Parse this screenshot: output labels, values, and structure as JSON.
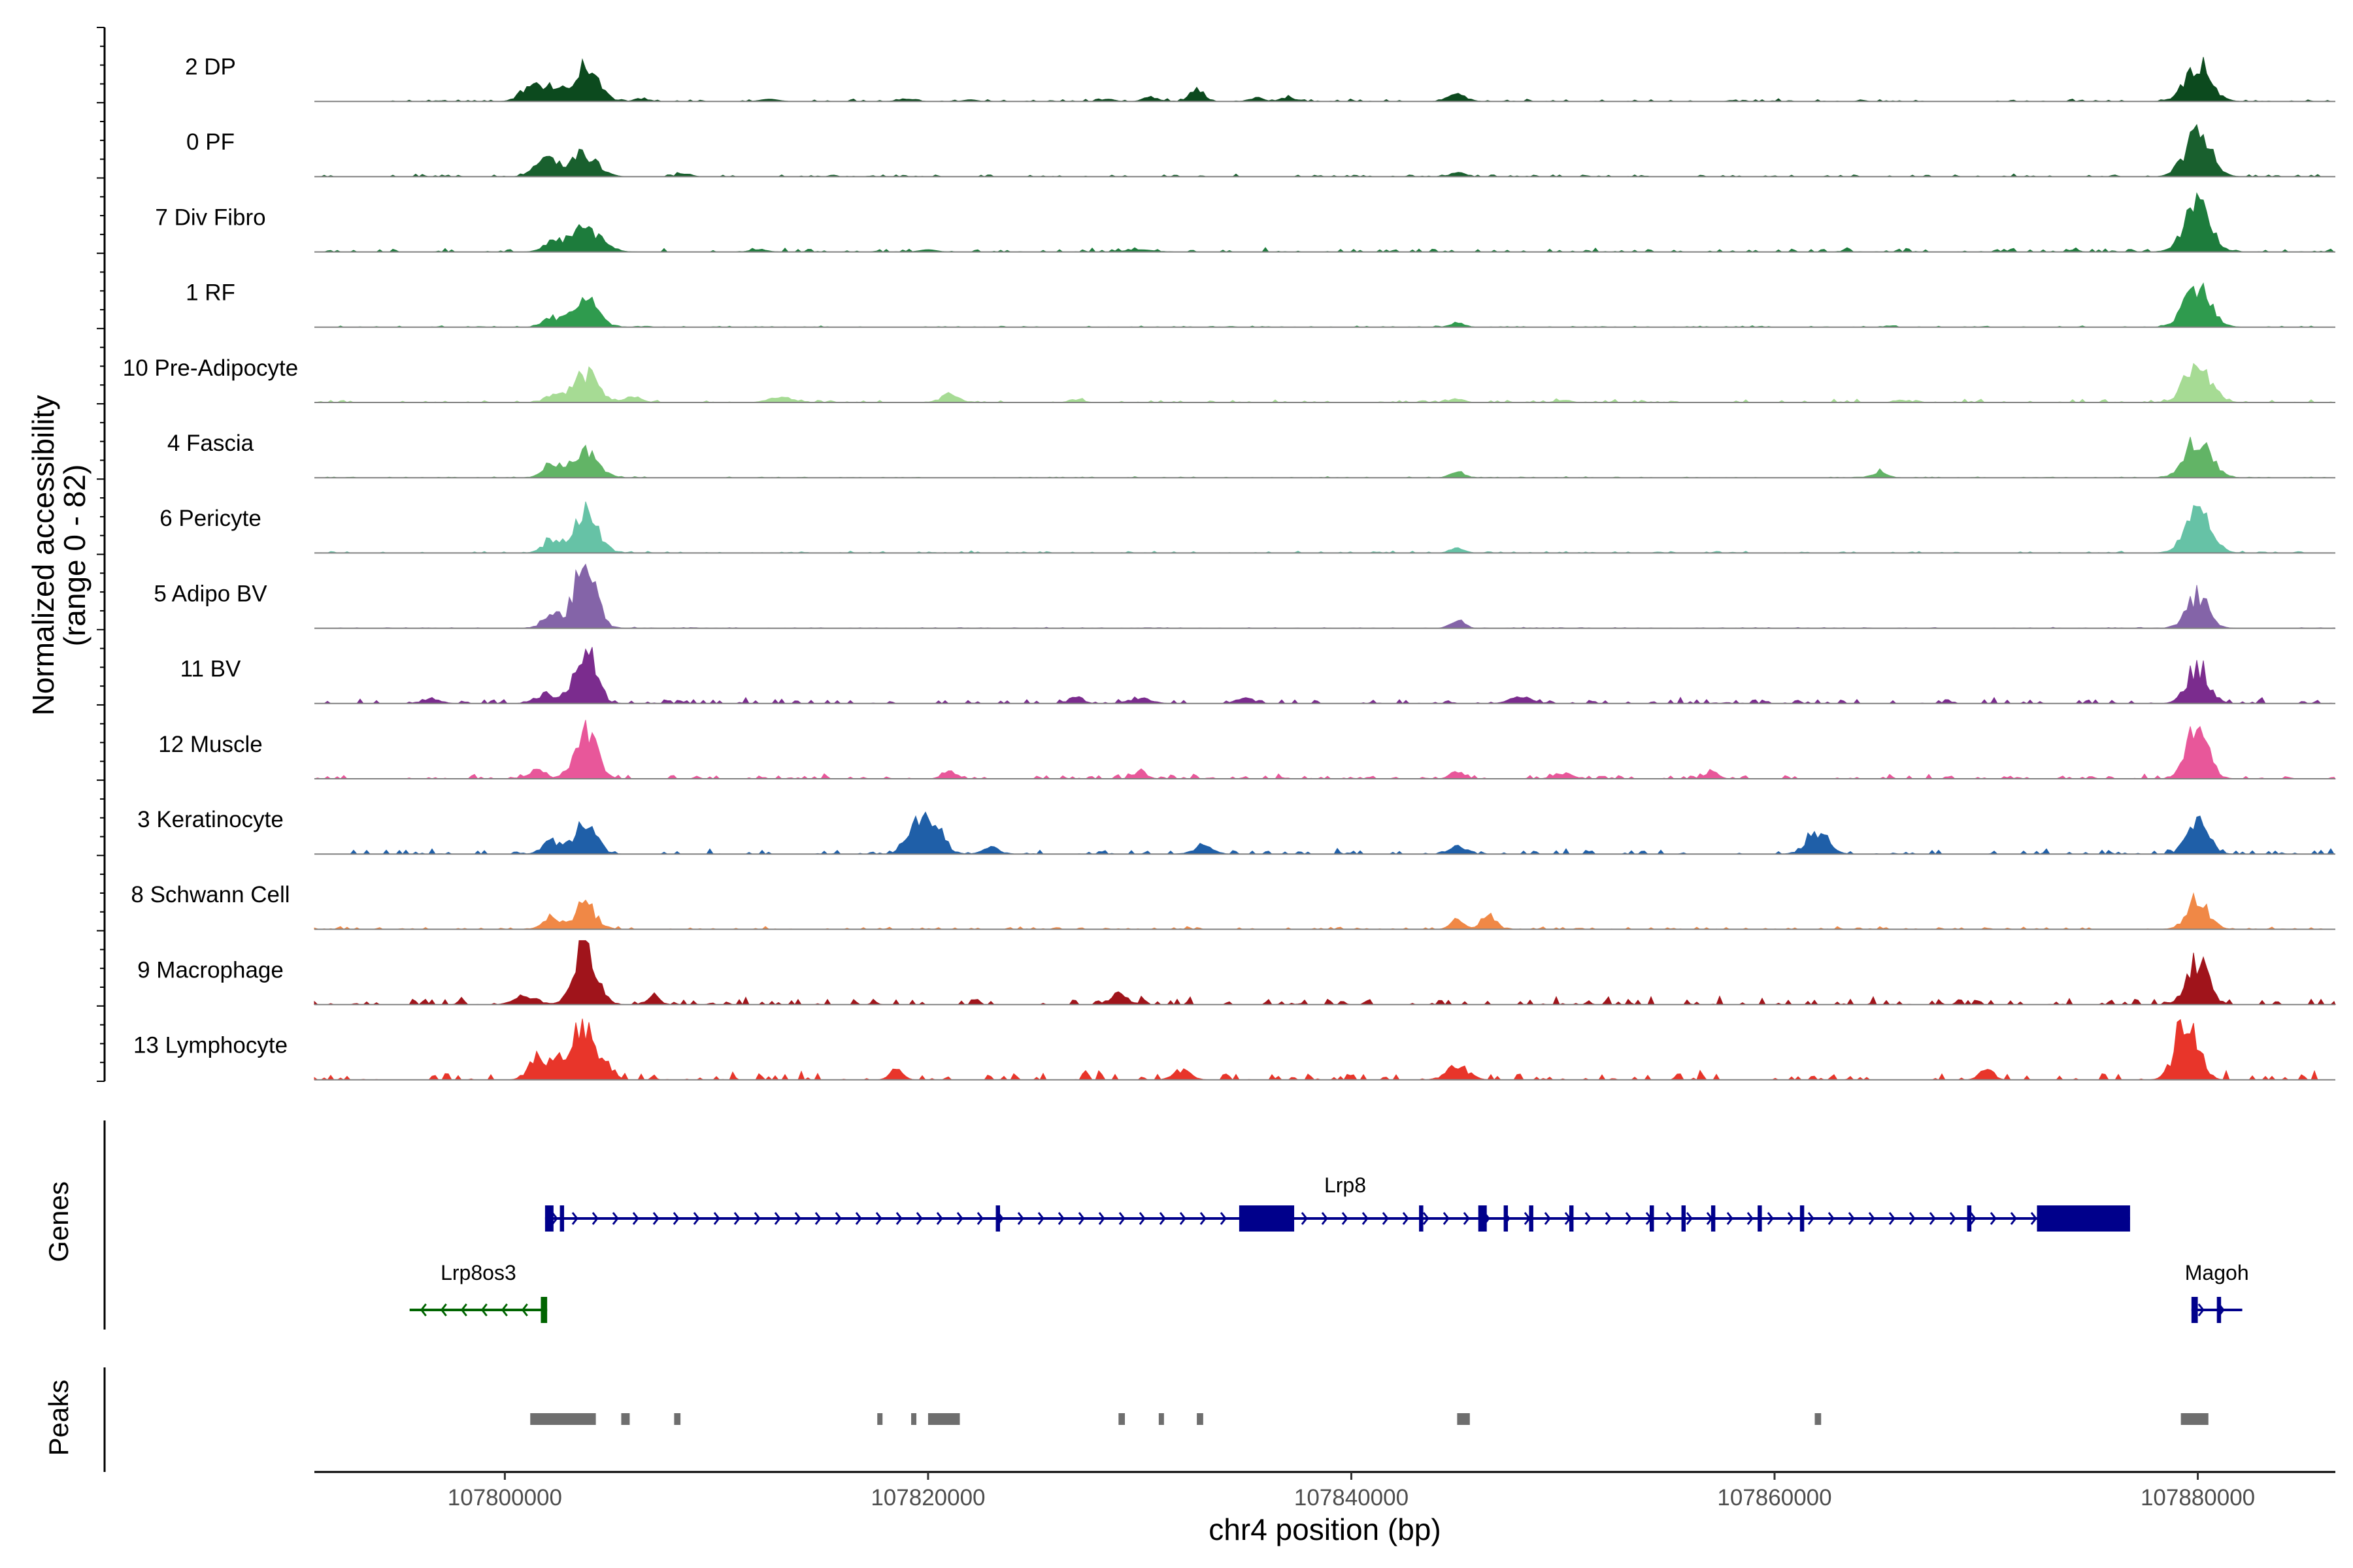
{
  "chart_data": {
    "type": "area",
    "title": "",
    "ylabel_line1": "Normalized accessibility",
    "ylabel_line2": "(range 0 - 82)",
    "ylim": [
      0,
      82
    ],
    "xlabel": "chr4 position (bp)",
    "xlim": [
      107791000,
      107886500
    ],
    "xticks": [
      107800000,
      107820000,
      107840000,
      107860000,
      107880000
    ],
    "xtick_labels": [
      "107800000",
      "107820000",
      "107840000",
      "107860000",
      "107880000"
    ],
    "series": [
      {
        "name": "2 DP",
        "color": "#0c4a1e",
        "noise": 1.0,
        "peaks": [
          [
            107801000,
            10,
            400
          ],
          [
            107802000,
            18,
            500
          ],
          [
            107803800,
            36,
            600
          ],
          [
            107806500,
            3,
            300
          ],
          [
            107812500,
            2,
            400
          ],
          [
            107819000,
            2,
            400
          ],
          [
            107822000,
            1.5,
            300
          ],
          [
            107828500,
            2,
            300
          ],
          [
            107830500,
            5,
            300
          ],
          [
            107832700,
            14,
            300
          ],
          [
            107835500,
            4,
            300
          ],
          [
            107837000,
            5,
            300
          ],
          [
            107845000,
            8,
            400
          ],
          [
            107880000,
            40,
            600
          ]
        ]
      },
      {
        "name": "0 PF",
        "color": "#19602e",
        "noise": 1.0,
        "peaks": [
          [
            107801500,
            6,
            400
          ],
          [
            107802200,
            16,
            500
          ],
          [
            107803800,
            24,
            600
          ],
          [
            107808500,
            3,
            300
          ],
          [
            107845000,
            6,
            300
          ],
          [
            107880000,
            44,
            600
          ]
        ]
      },
      {
        "name": "7 Div Fibro",
        "color": "#1d7c3c",
        "noise": 1.6,
        "peaks": [
          [
            107802200,
            10,
            400
          ],
          [
            107803800,
            24,
            700
          ],
          [
            107812000,
            2,
            400
          ],
          [
            107820000,
            2,
            400
          ],
          [
            107830000,
            2,
            600
          ],
          [
            107880000,
            50,
            600
          ]
        ]
      },
      {
        "name": "1 RF",
        "color": "#2f9b4e",
        "noise": 0.6,
        "peaks": [
          [
            107802200,
            9,
            400
          ],
          [
            107803800,
            28,
            600
          ],
          [
            107845000,
            6,
            300
          ],
          [
            107880000,
            42,
            600
          ]
        ]
      },
      {
        "name": "10 Pre-Adipocyte",
        "color": "#a6db94",
        "noise": 1.2,
        "peaks": [
          [
            107802200,
            6,
            400
          ],
          [
            107803800,
            30,
            600
          ],
          [
            107806000,
            6,
            400
          ],
          [
            107813000,
            6,
            500
          ],
          [
            107821000,
            8,
            400
          ],
          [
            107827000,
            3,
            300
          ],
          [
            107845000,
            4,
            300
          ],
          [
            107850000,
            3,
            300
          ],
          [
            107866000,
            3,
            300
          ],
          [
            107880000,
            40,
            600
          ]
        ]
      },
      {
        "name": "4 Fascia",
        "color": "#62b466",
        "noise": 0.4,
        "peaks": [
          [
            107802200,
            14,
            400
          ],
          [
            107803800,
            26,
            600
          ],
          [
            107845000,
            8,
            300
          ],
          [
            107865000,
            8,
            300
          ],
          [
            107880000,
            38,
            600
          ]
        ]
      },
      {
        "name": "6 Pericyte",
        "color": "#66c2a6",
        "noise": 0.8,
        "peaks": [
          [
            107802200,
            14,
            400
          ],
          [
            107803800,
            40,
            600
          ],
          [
            107845000,
            6,
            300
          ],
          [
            107880000,
            40,
            600
          ]
        ]
      },
      {
        "name": "5 Adipo BV",
        "color": "#8464a8",
        "noise": 0.4,
        "peaks": [
          [
            107802200,
            16,
            400
          ],
          [
            107803800,
            70,
            500
          ],
          [
            107845000,
            10,
            300
          ],
          [
            107880000,
            34,
            500
          ]
        ]
      },
      {
        "name": "11 BV",
        "color": "#7b2c8e",
        "noise": 2.2,
        "peaks": [
          [
            107796500,
            6,
            400
          ],
          [
            107802000,
            10,
            500
          ],
          [
            107803800,
            60,
            500
          ],
          [
            107827000,
            8,
            300
          ],
          [
            107830000,
            6,
            500
          ],
          [
            107835000,
            6,
            400
          ],
          [
            107848000,
            6,
            500
          ],
          [
            107880000,
            38,
            500
          ]
        ]
      },
      {
        "name": "12 Muscle",
        "color": "#e8579a",
        "noise": 1.8,
        "peaks": [
          [
            107801500,
            10,
            400
          ],
          [
            107803800,
            52,
            500
          ],
          [
            107821000,
            10,
            300
          ],
          [
            107830000,
            8,
            300
          ],
          [
            107845000,
            8,
            300
          ],
          [
            107850000,
            6,
            400
          ],
          [
            107857000,
            8,
            300
          ],
          [
            107880000,
            52,
            500
          ]
        ]
      },
      {
        "name": "3 Keratinocyte",
        "color": "#1f5fa8",
        "noise": 2.2,
        "peaks": [
          [
            107802200,
            14,
            400
          ],
          [
            107803800,
            32,
            500
          ],
          [
            107819200,
            22,
            400
          ],
          [
            107820200,
            36,
            500
          ],
          [
            107823000,
            6,
            400
          ],
          [
            107833000,
            10,
            400
          ],
          [
            107845000,
            8,
            300
          ],
          [
            107862000,
            24,
            500
          ],
          [
            107880000,
            32,
            500
          ]
        ]
      },
      {
        "name": "8 Schwann Cell",
        "color": "#f08846",
        "noise": 1.0,
        "peaks": [
          [
            107802200,
            12,
            400
          ],
          [
            107803800,
            26,
            500
          ],
          [
            107845000,
            10,
            300
          ],
          [
            107846500,
            18,
            300
          ],
          [
            107880000,
            30,
            500
          ]
        ]
      },
      {
        "name": "9 Macrophage",
        "color": "#a0141b",
        "noise": 3.0,
        "peaks": [
          [
            107801000,
            10,
            500
          ],
          [
            107803800,
            68,
            500
          ],
          [
            107807000,
            10,
            300
          ],
          [
            107829000,
            10,
            400
          ],
          [
            107880000,
            44,
            500
          ]
        ]
      },
      {
        "name": "13 Lymphocyte",
        "color": "#e8352a",
        "noise": 3.5,
        "peaks": [
          [
            107801500,
            22,
            400
          ],
          [
            107802500,
            26,
            400
          ],
          [
            107803800,
            62,
            500
          ],
          [
            107805000,
            10,
            300
          ],
          [
            107818500,
            10,
            300
          ],
          [
            107832000,
            10,
            400
          ],
          [
            107845000,
            14,
            500
          ],
          [
            107870000,
            14,
            300
          ],
          [
            107879500,
            70,
            500
          ]
        ]
      }
    ],
    "genes": [
      {
        "name": "Lrp8",
        "strand": "+",
        "color": "#00008b",
        "start": 107801900,
        "end": 107876800,
        "exons": [
          [
            107801900,
            107802300
          ],
          [
            107802600,
            107802800
          ],
          [
            107823200,
            107823400
          ],
          [
            107834700,
            107837300
          ],
          [
            107843200,
            107843400
          ],
          [
            107846000,
            107846400
          ],
          [
            107847200,
            107847400
          ],
          [
            107848400,
            107848600
          ],
          [
            107850300,
            107850500
          ],
          [
            107854100,
            107854300
          ],
          [
            107855600,
            107855800
          ],
          [
            107857000,
            107857200
          ],
          [
            107859200,
            107859400
          ],
          [
            107861200,
            107861400
          ],
          [
            107869100,
            107869300
          ],
          [
            107872400,
            107876800
          ]
        ]
      },
      {
        "name": "Lrp8os3",
        "strand": "-",
        "color": "#006400",
        "start": 107795500,
        "end": 107802000,
        "exons": [
          [
            107801700,
            107802000
          ]
        ]
      },
      {
        "name": "Magoh",
        "strand": "+",
        "color": "#00008b",
        "start": 107879700,
        "end": 107882100,
        "exons": [
          [
            107879700,
            107880000
          ],
          [
            107880900,
            107881100
          ]
        ]
      }
    ],
    "peaks_track": [
      [
        107801200,
        107804300
      ],
      [
        107805500,
        107805900
      ],
      [
        107808000,
        107808300
      ],
      [
        107817600,
        107817800
      ],
      [
        107819200,
        107819400
      ],
      [
        107820000,
        107821500
      ],
      [
        107829000,
        107829300
      ],
      [
        107830900,
        107831100
      ],
      [
        107832700,
        107833000
      ],
      [
        107845000,
        107845600
      ],
      [
        107861900,
        107862200
      ],
      [
        107879200,
        107880500
      ]
    ],
    "panel_titles": [
      "Genes",
      "Peaks"
    ]
  }
}
